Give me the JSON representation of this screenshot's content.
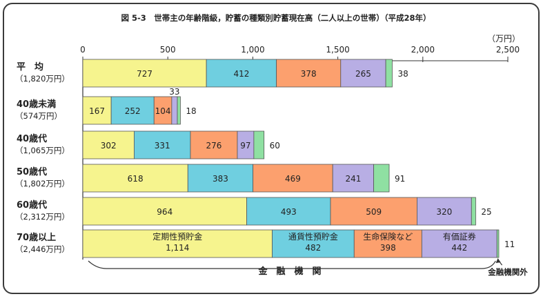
{
  "chart_data": {
    "type": "bar",
    "orientation": "horizontal",
    "stacked": true,
    "title": "図 5-3　世帯主の年齢階級，貯蓄の種類別貯蓄現在高（二人以上の世帯）（平成28年）",
    "unit_label": "（万円）",
    "xlim": [
      0,
      2500
    ],
    "ticks": [
      {
        "value": 0,
        "label": "0"
      },
      {
        "value": 500,
        "label": "500"
      },
      {
        "value": 1000,
        "label": "1,000"
      },
      {
        "value": 1500,
        "label": "1,500"
      },
      {
        "value": 2000,
        "label": "2,000"
      },
      {
        "value": 2500,
        "label": "2,500"
      }
    ],
    "categories": [
      {
        "name": "平　均",
        "total": "（1,820万円）"
      },
      {
        "name": "40歳未満",
        "total": "（574万円）"
      },
      {
        "name": "40歳代",
        "total": "（1,065万円）"
      },
      {
        "name": "50歳代",
        "total": "（1,802万円）"
      },
      {
        "name": "60歳代",
        "total": "（2,312万円）"
      },
      {
        "name": "70歳以上",
        "total": "（2,446万円）"
      }
    ],
    "series": [
      {
        "name": "定期性預貯金",
        "color": "#f6f48e",
        "values": [
          727,
          167,
          302,
          618,
          964,
          1114
        ]
      },
      {
        "name": "通貨性預貯金",
        "color": "#6fcfe0",
        "values": [
          412,
          252,
          331,
          383,
          493,
          482
        ]
      },
      {
        "name": "生命保険など",
        "color": "#fca06e",
        "values": [
          378,
          104,
          276,
          469,
          509,
          398
        ]
      },
      {
        "name": "有価証券",
        "color": "#b8aee4",
        "values": [
          265,
          33,
          97,
          241,
          320,
          442
        ]
      },
      {
        "name": "",
        "color": "#8fe0a2",
        "values": [
          38,
          18,
          60,
          91,
          25,
          11
        ]
      }
    ],
    "value_labels": [
      [
        "727",
        "412",
        "378",
        "265",
        "38"
      ],
      [
        "167",
        "252",
        "104",
        "33",
        "18"
      ],
      [
        "302",
        "331",
        "276",
        "97",
        "60"
      ],
      [
        "618",
        "383",
        "469",
        "241",
        "91"
      ],
      [
        "964",
        "493",
        "509",
        "320",
        "25"
      ],
      [
        "1,114",
        "482",
        "398",
        "442",
        "11"
      ]
    ],
    "inbar_legend_row": 5,
    "bracket_label": "金　融　機　関",
    "outside_label": "金融機関外"
  }
}
